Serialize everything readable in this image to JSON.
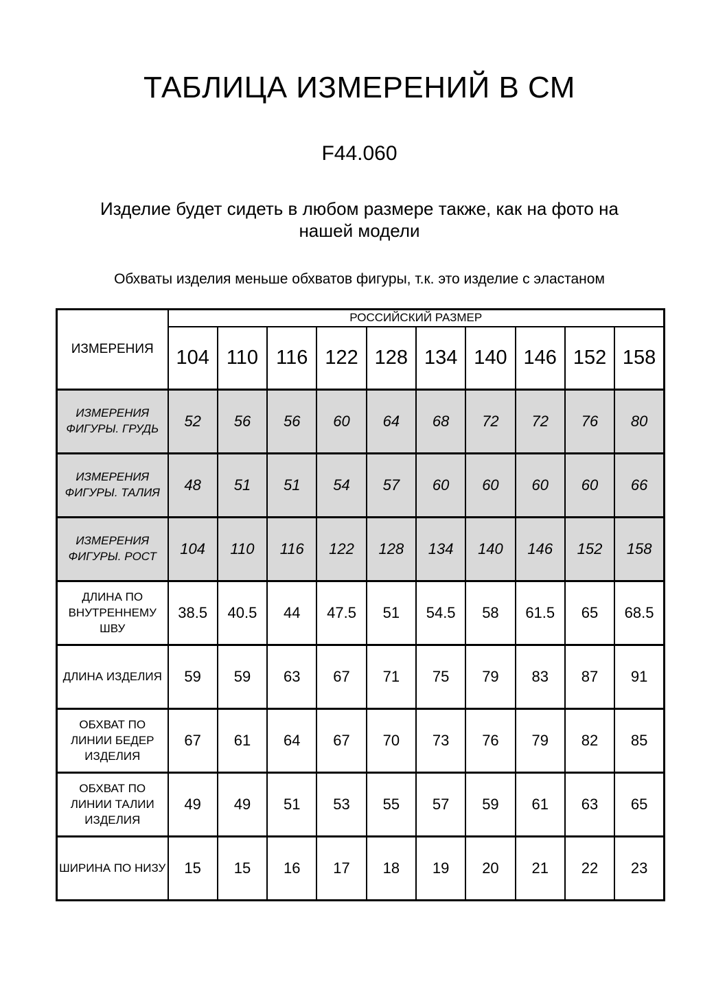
{
  "page": {
    "title": "ТАБЛИЦА ИЗМЕРЕНИЙ В СМ",
    "article": "F44.060",
    "fit_note": "Изделие будет сидеть в любом размере также, как на фото на нашей модели",
    "elastane_note": "Обхваты изделия меньше обхватов фигуры, т.к. это изделие с эластаном"
  },
  "table": {
    "measurements_label": "ИЗМЕРЕНИЯ",
    "size_group_label": "РОССИЙСКИЙ РАЗМЕР",
    "sizes": [
      "104",
      "110",
      "116",
      "122",
      "128",
      "134",
      "140",
      "146",
      "152",
      "158"
    ],
    "rows": [
      {
        "label": "ИЗМЕРЕНИЯ ФИГУРЫ. ГРУДЬ",
        "shaded": true,
        "values": [
          "52",
          "56",
          "56",
          "60",
          "64",
          "68",
          "72",
          "72",
          "76",
          "80"
        ]
      },
      {
        "label": "ИЗМЕРЕНИЯ ФИГУРЫ. ТАЛИЯ",
        "shaded": true,
        "values": [
          "48",
          "51",
          "51",
          "54",
          "57",
          "60",
          "60",
          "60",
          "60",
          "66"
        ]
      },
      {
        "label": "ИЗМЕРЕНИЯ ФИГУРЫ. РОСТ",
        "shaded": true,
        "values": [
          "104",
          "110",
          "116",
          "122",
          "128",
          "134",
          "140",
          "146",
          "152",
          "158"
        ]
      },
      {
        "label": "ДЛИНА ПО ВНУТРЕННЕМУ ШВУ",
        "shaded": false,
        "values": [
          "38.5",
          "40.5",
          "44",
          "47.5",
          "51",
          "54.5",
          "58",
          "61.5",
          "65",
          "68.5"
        ]
      },
      {
        "label": "ДЛИНА ИЗДЕЛИЯ",
        "shaded": false,
        "values": [
          "59",
          "59",
          "63",
          "67",
          "71",
          "75",
          "79",
          "83",
          "87",
          "91"
        ]
      },
      {
        "label": "ОБХВАТ ПО ЛИНИИ БЕДЕР ИЗДЕЛИЯ",
        "shaded": false,
        "values": [
          "67",
          "61",
          "64",
          "67",
          "70",
          "73",
          "76",
          "79",
          "82",
          "85"
        ]
      },
      {
        "label": "ОБХВАТ ПО ЛИНИИ ТАЛИИ ИЗДЕЛИЯ",
        "shaded": false,
        "values": [
          "49",
          "49",
          "51",
          "53",
          "55",
          "57",
          "59",
          "61",
          "63",
          "65"
        ]
      },
      {
        "label": "ШИРИНА ПО НИЗУ",
        "shaded": false,
        "values": [
          "15",
          "15",
          "16",
          "17",
          "18",
          "19",
          "20",
          "21",
          "22",
          "23"
        ]
      }
    ],
    "colors": {
      "shaded_row_bg": "#d9d9d9",
      "border": "#000000",
      "text": "#000000"
    }
  }
}
